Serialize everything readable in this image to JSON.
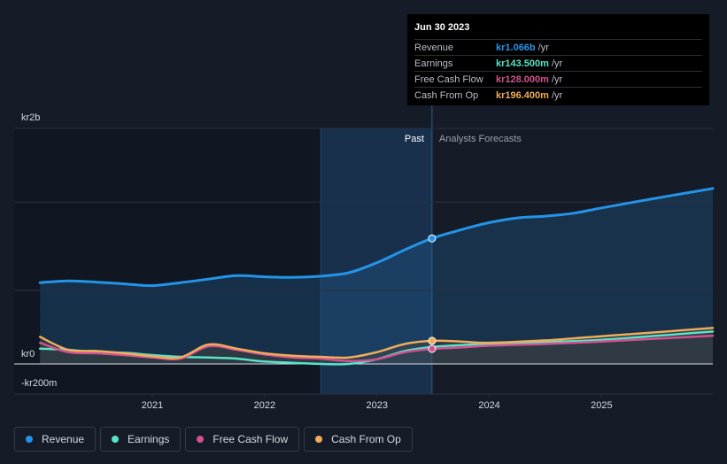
{
  "chart_data": {
    "type": "line",
    "y_axis_labels": [
      "kr2b",
      "kr0",
      "-kr200m"
    ],
    "x_tick_labels": [
      {
        "label": "2021",
        "x": 2021.0
      },
      {
        "label": "2022",
        "x": 2022.0
      },
      {
        "label": "2023",
        "x": 2023.0
      },
      {
        "label": "2024",
        "x": 2024.0
      },
      {
        "label": "2025",
        "x": 2025.0
      }
    ],
    "xlim": [
      2019.77,
      2025.99
    ],
    "ylim": [
      -250,
      2000
    ],
    "highlight_range": [
      2022.5,
      2023.49
    ],
    "divider_x": 2023.49,
    "past_label": "Past",
    "forecast_label": "Analysts Forecasts",
    "series": [
      {
        "name": "Revenue",
        "color": "#2394e8",
        "points": [
          [
            2020.0,
            690
          ],
          [
            2020.25,
            705
          ],
          [
            2020.5,
            695
          ],
          [
            2020.75,
            680
          ],
          [
            2021.0,
            665
          ],
          [
            2021.25,
            690
          ],
          [
            2021.5,
            720
          ],
          [
            2021.75,
            750
          ],
          [
            2022.0,
            740
          ],
          [
            2022.25,
            735
          ],
          [
            2022.5,
            745
          ],
          [
            2022.75,
            775
          ],
          [
            2023.0,
            860
          ],
          [
            2023.25,
            970
          ],
          [
            2023.49,
            1066
          ],
          [
            2023.75,
            1140
          ],
          [
            2024.0,
            1200
          ],
          [
            2024.25,
            1240
          ],
          [
            2024.5,
            1255
          ],
          [
            2024.75,
            1280
          ],
          [
            2025.0,
            1325
          ],
          [
            2025.5,
            1410
          ],
          [
            2025.99,
            1490
          ]
        ],
        "marker": [
          2023.49,
          1066
        ]
      },
      {
        "name": "Earnings",
        "color": "#58e3c9",
        "points": [
          [
            2020.0,
            130
          ],
          [
            2020.25,
            120
          ],
          [
            2020.5,
            100
          ],
          [
            2020.75,
            95
          ],
          [
            2021.0,
            75
          ],
          [
            2021.25,
            60
          ],
          [
            2021.5,
            55
          ],
          [
            2021.75,
            45
          ],
          [
            2022.0,
            20
          ],
          [
            2022.25,
            10
          ],
          [
            2022.5,
            0
          ],
          [
            2022.75,
            0
          ],
          [
            2023.0,
            40
          ],
          [
            2023.25,
            110
          ],
          [
            2023.49,
            143.5
          ],
          [
            2023.75,
            160
          ],
          [
            2024.0,
            170
          ],
          [
            2024.5,
            185
          ],
          [
            2025.0,
            205
          ],
          [
            2025.5,
            240
          ],
          [
            2025.99,
            275
          ]
        ]
      },
      {
        "name": "Free Cash Flow",
        "color": "#d2528f",
        "points": [
          [
            2020.0,
            180
          ],
          [
            2020.25,
            100
          ],
          [
            2020.5,
            90
          ],
          [
            2020.75,
            75
          ],
          [
            2021.0,
            55
          ],
          [
            2021.25,
            45
          ],
          [
            2021.5,
            150
          ],
          [
            2021.75,
            120
          ],
          [
            2022.0,
            80
          ],
          [
            2022.25,
            55
          ],
          [
            2022.5,
            45
          ],
          [
            2022.75,
            25
          ],
          [
            2023.0,
            40
          ],
          [
            2023.25,
            100
          ],
          [
            2023.49,
            128
          ],
          [
            2023.75,
            140
          ],
          [
            2024.0,
            155
          ],
          [
            2024.5,
            170
          ],
          [
            2025.0,
            190
          ],
          [
            2025.5,
            215
          ],
          [
            2025.99,
            240
          ]
        ],
        "marker": [
          2023.49,
          128
        ]
      },
      {
        "name": "Cash From Op",
        "color": "#efac5b",
        "points": [
          [
            2020.0,
            230
          ],
          [
            2020.25,
            120
          ],
          [
            2020.5,
            110
          ],
          [
            2020.75,
            90
          ],
          [
            2021.0,
            65
          ],
          [
            2021.25,
            55
          ],
          [
            2021.5,
            165
          ],
          [
            2021.75,
            130
          ],
          [
            2022.0,
            90
          ],
          [
            2022.25,
            70
          ],
          [
            2022.5,
            60
          ],
          [
            2022.75,
            55
          ],
          [
            2023.0,
            100
          ],
          [
            2023.25,
            170
          ],
          [
            2023.49,
            196.4
          ],
          [
            2023.75,
            190
          ],
          [
            2024.0,
            180
          ],
          [
            2024.5,
            200
          ],
          [
            2025.0,
            235
          ],
          [
            2025.5,
            270
          ],
          [
            2025.99,
            305
          ]
        ],
        "marker": [
          2023.49,
          196.4
        ]
      }
    ]
  },
  "tooltip": {
    "date": "Jun 30 2023",
    "rows": [
      {
        "label": "Revenue",
        "value": "kr1.066b",
        "unit": "/yr",
        "color": "#2394e8"
      },
      {
        "label": "Earnings",
        "value": "kr143.500m",
        "unit": "/yr",
        "color": "#58e3c9"
      },
      {
        "label": "Free Cash Flow",
        "value": "kr128.000m",
        "unit": "/yr",
        "color": "#d2528f"
      },
      {
        "label": "Cash From Op",
        "value": "kr196.400m",
        "unit": "/yr",
        "color": "#efac5b"
      }
    ]
  },
  "legend": [
    {
      "label": "Revenue",
      "color": "#2394e8"
    },
    {
      "label": "Earnings",
      "color": "#58e3c9"
    },
    {
      "label": "Free Cash Flow",
      "color": "#d2528f"
    },
    {
      "label": "Cash From Op",
      "color": "#efac5b"
    }
  ]
}
